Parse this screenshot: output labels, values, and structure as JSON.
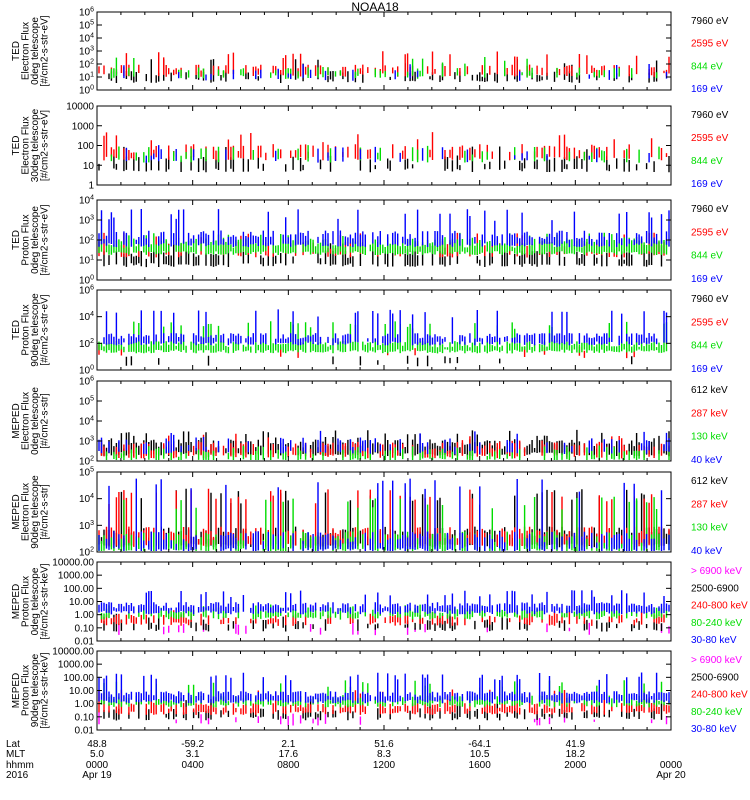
{
  "title": "NOAA18",
  "colors": {
    "black": "#000000",
    "red": "#ff0000",
    "green": "#00dd00",
    "blue": "#0000ff",
    "magenta": "#ff00ff"
  },
  "chart_data": [
    {
      "type": "line",
      "scale": "log",
      "ylabel": [
        "TED",
        "Electron Flux",
        "0deg telescope",
        "[#/cm2-s-str-eV]"
      ],
      "yticks": [
        {
          "v": 1,
          "label": "10^0"
        },
        {
          "v": 10,
          "label": "10^1"
        },
        {
          "v": 100,
          "label": "10^2"
        },
        {
          "v": 1000,
          "label": "10^3"
        },
        {
          "v": 10000,
          "label": "10^4"
        },
        {
          "v": 100000,
          "label": "10^5"
        },
        {
          "v": 1000000,
          "label": "10^6"
        }
      ],
      "ylim": [
        1,
        1000000
      ],
      "series": [
        {
          "name": "7960 eV",
          "color": "black",
          "base": 10,
          "spike": 200,
          "density": 0.35
        },
        {
          "name": "2595 eV",
          "color": "red",
          "base": 30,
          "spike": 800,
          "density": 0.45
        },
        {
          "name": "844 eV",
          "color": "green",
          "base": 20,
          "spike": 300,
          "density": 0.2
        },
        {
          "name": "169 eV",
          "color": "blue",
          "base": 15,
          "spike": 100,
          "density": 0.08
        }
      ]
    },
    {
      "type": "line",
      "scale": "log",
      "ylabel": [
        "TED",
        "Electron Flux",
        "30deg telescope",
        "[#/cm2-s-str-eV]"
      ],
      "yticks": [
        {
          "v": 1,
          "label": "1"
        },
        {
          "v": 10,
          "label": "10"
        },
        {
          "v": 100,
          "label": "100"
        },
        {
          "v": 1000,
          "label": "1000"
        },
        {
          "v": 10000,
          "label": "10000"
        }
      ],
      "ylim": [
        1,
        10000
      ],
      "series": [
        {
          "name": "7960 eV",
          "color": "black",
          "base": 10,
          "spike": 80,
          "density": 0.35
        },
        {
          "name": "2595 eV",
          "color": "red",
          "base": 40,
          "spike": 400,
          "density": 0.4
        },
        {
          "name": "844 eV",
          "color": "green",
          "base": 30,
          "spike": 100,
          "density": 0.15
        },
        {
          "name": "169 eV",
          "color": "blue",
          "base": 30,
          "spike": 100,
          "density": 0.08
        }
      ]
    },
    {
      "type": "line",
      "scale": "log",
      "ylabel": [
        "TED",
        "Proton Flux",
        "0deg telescope",
        "[#/cm2-s-str-eV]"
      ],
      "yticks": [
        {
          "v": 1,
          "label": "10^0"
        },
        {
          "v": 10,
          "label": "10^1"
        },
        {
          "v": 100,
          "label": "10^2"
        },
        {
          "v": 1000,
          "label": "10^3"
        },
        {
          "v": 10000,
          "label": "10^4"
        }
      ],
      "ylim": [
        1,
        10000
      ],
      "series": [
        {
          "name": "7960 eV",
          "color": "black",
          "base": 10,
          "spike": 60,
          "density": 0.55
        },
        {
          "name": "2595 eV",
          "color": "red",
          "base": 30,
          "spike": 200,
          "density": 0.3
        },
        {
          "name": "844 eV",
          "color": "green",
          "base": 40,
          "spike": 200,
          "density": 0.9
        },
        {
          "name": "169 eV",
          "color": "blue",
          "base": 100,
          "spike": 3000,
          "density": 0.7
        }
      ]
    },
    {
      "type": "line",
      "scale": "log",
      "ylabel": [
        "TED",
        "Proton Flux",
        "90deg telescope",
        "[#/cm2-s-str-eV]"
      ],
      "yticks": [
        {
          "v": 1,
          "label": "10^0"
        },
        {
          "v": 100,
          "label": "10^2"
        },
        {
          "v": 10000,
          "label": "10^4"
        },
        {
          "v": 1000000,
          "label": "10^6"
        }
      ],
      "ylim": [
        1,
        1000000
      ],
      "series": [
        {
          "name": "7960 eV",
          "color": "black",
          "base": 5,
          "spike": 20,
          "density": 0.05
        },
        {
          "name": "2595 eV",
          "color": "red",
          "base": 20,
          "spike": 80,
          "density": 0.05
        },
        {
          "name": "844 eV",
          "color": "green",
          "base": 50,
          "spike": 4000,
          "density": 0.95
        },
        {
          "name": "169 eV",
          "color": "blue",
          "base": 200,
          "spike": 30000,
          "density": 0.8
        }
      ]
    },
    {
      "type": "line",
      "scale": "log",
      "ylabel": [
        "MEPED",
        "Electron Flux",
        "0deg telescope",
        "[#/cm2-s-str]"
      ],
      "yticks": [
        {
          "v": 100,
          "label": "10^2"
        },
        {
          "v": 1000,
          "label": "10^3"
        },
        {
          "v": 10000,
          "label": "10^4"
        },
        {
          "v": 100000,
          "label": "10^5"
        },
        {
          "v": 1000000,
          "label": "10^6"
        }
      ],
      "ylim": [
        100,
        1000000
      ],
      "series": [
        {
          "name": "612 keV",
          "color": "black",
          "base": 400,
          "spike": 3000,
          "density": 0.9
        },
        {
          "name": "287 keV",
          "color": "red",
          "base": 300,
          "spike": 2000,
          "density": 0.6
        },
        {
          "name": "130 keV",
          "color": "green",
          "base": 200,
          "spike": 400,
          "density": 0.4
        },
        {
          "name": "40 keV",
          "color": "blue",
          "base": 500,
          "spike": 3000,
          "density": 0.3
        }
      ]
    },
    {
      "type": "line",
      "scale": "log",
      "ylabel": [
        "MEPED",
        "Electron Flux",
        "90deg telescope",
        "[#/cm2-s-str]"
      ],
      "yticks": [
        {
          "v": 100,
          "label": "10^2"
        },
        {
          "v": 1000,
          "label": "10^3"
        },
        {
          "v": 10000,
          "label": "10^4"
        },
        {
          "v": 100000,
          "label": "10^5"
        }
      ],
      "ylim": [
        100,
        100000
      ],
      "series": [
        {
          "name": "612 keV",
          "color": "black",
          "base": 300,
          "spike": 20000,
          "density": 0.85
        },
        {
          "name": "287 keV",
          "color": "red",
          "base": 300,
          "spike": 20000,
          "density": 0.8
        },
        {
          "name": "130 keV",
          "color": "green",
          "base": 200,
          "spike": 10000,
          "density": 0.7
        },
        {
          "name": "40 keV",
          "color": "blue",
          "base": 200,
          "spike": 50000,
          "density": 0.6
        }
      ]
    },
    {
      "type": "line",
      "scale": "log",
      "ylabel": [
        "MEPED",
        "Proton Flux",
        "0deg telescope",
        "[#/cm2-s-str-keV]"
      ],
      "yticks": [
        {
          "v": 0.01,
          "label": "0.01"
        },
        {
          "v": 0.1,
          "label": "0.10"
        },
        {
          "v": 1,
          "label": "1.00"
        },
        {
          "v": 10,
          "label": "10.00"
        },
        {
          "v": 100,
          "label": "100.00"
        },
        {
          "v": 1000,
          "label": "1000.00"
        },
        {
          "v": 10000,
          "label": "10000.00"
        }
      ],
      "ylim": [
        0.01,
        10000
      ],
      "series": [
        {
          "name": "> 6900 keV",
          "color": "magenta",
          "base": 0.08,
          "spike": 0.2,
          "density": 0.1
        },
        {
          "name": "2500-6900",
          "color": "black",
          "base": 0.15,
          "spike": 1,
          "density": 0.3
        },
        {
          "name": "240-800 keV",
          "color": "red",
          "base": 0.4,
          "spike": 2,
          "density": 0.4
        },
        {
          "name": "80-240 keV",
          "color": "green",
          "base": 1.2,
          "spike": 5,
          "density": 0.6
        },
        {
          "name": "30-80 keV",
          "color": "blue",
          "base": 3,
          "spike": 60,
          "density": 0.9
        }
      ]
    },
    {
      "type": "line",
      "scale": "log",
      "ylabel": [
        "MEPED",
        "Proton Flux",
        "90deg telescope",
        "[#/cm2-s-str-keV]"
      ],
      "yticks": [
        {
          "v": 0.01,
          "label": "0.01"
        },
        {
          "v": 0.1,
          "label": "0.10"
        },
        {
          "v": 1,
          "label": "1.00"
        },
        {
          "v": 10,
          "label": "10.00"
        },
        {
          "v": 100,
          "label": "100.00"
        },
        {
          "v": 1000,
          "label": "1000.00"
        },
        {
          "v": 10000,
          "label": "10000.00"
        }
      ],
      "ylim": [
        0.01,
        10000
      ],
      "series": [
        {
          "name": "> 6900 keV",
          "color": "magenta",
          "base": 0.06,
          "spike": 0.2,
          "density": 0.1
        },
        {
          "name": "2500-6900",
          "color": "black",
          "base": 0.15,
          "spike": 2,
          "density": 0.4
        },
        {
          "name": "240-800 keV",
          "color": "red",
          "base": 0.4,
          "spike": 10,
          "density": 0.6
        },
        {
          "name": "80-240 keV",
          "color": "green",
          "base": 1.5,
          "spike": 50,
          "density": 0.7
        },
        {
          "name": "30-80 keV",
          "color": "blue",
          "base": 3,
          "spike": 200,
          "density": 0.9
        }
      ]
    }
  ],
  "footer": {
    "row_labels": [
      "Lat",
      "MLT",
      "hhmm",
      "2016"
    ],
    "columns": [
      {
        "lat": "48.8",
        "mlt": "5.0",
        "hhmm": "0000",
        "date": "Apr 19"
      },
      {
        "lat": "-59.2",
        "mlt": "3.1",
        "hhmm": "0400",
        "date": ""
      },
      {
        "lat": "2.1",
        "mlt": "17.6",
        "hhmm": "0800",
        "date": ""
      },
      {
        "lat": "51.6",
        "mlt": "8.3",
        "hhmm": "1200",
        "date": ""
      },
      {
        "lat": "-64.1",
        "mlt": "10.5",
        "hhmm": "1600",
        "date": ""
      },
      {
        "lat": "41.9",
        "mlt": "18.2",
        "hhmm": "2000",
        "date": ""
      },
      {
        "lat": "",
        "mlt": "",
        "hhmm": "0000",
        "date": "Apr 20"
      }
    ]
  }
}
